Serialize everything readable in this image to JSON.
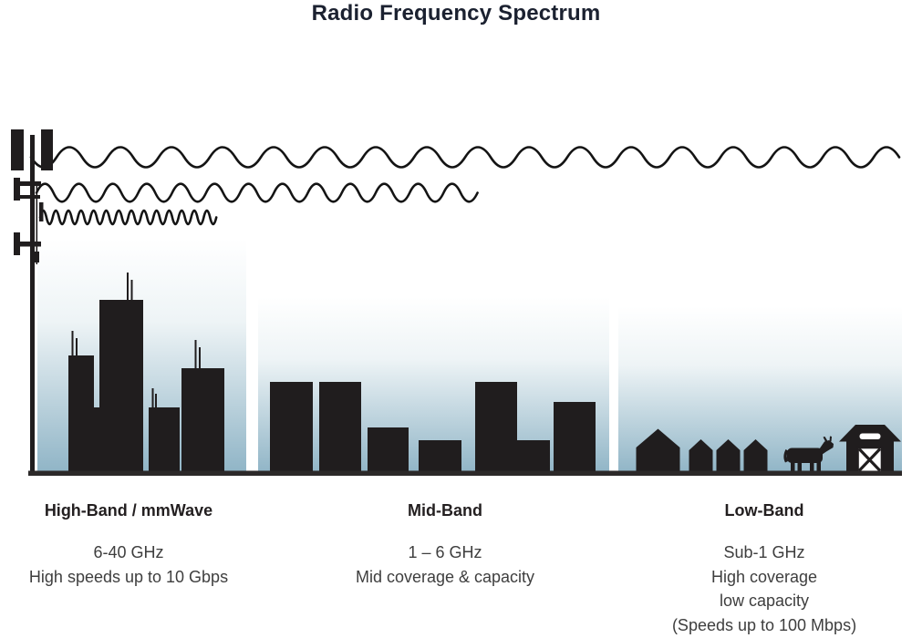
{
  "title": "Radio Frequency Spectrum",
  "bands": [
    {
      "name": "High-Band / mmWave",
      "frequency": "6-40 GHz",
      "lines": [
        "High speeds up to 10 Gbps"
      ]
    },
    {
      "name": "Mid-Band",
      "frequency": "1 – 6 GHz",
      "lines": [
        "Mid coverage & capacity"
      ]
    },
    {
      "name": "Low-Band",
      "frequency": "Sub-1 GHz",
      "lines": [
        "High coverage",
        "low capacity",
        "(Speeds up to 100 Mbps)"
      ]
    }
  ],
  "icons": {
    "tower": "cell-tower-icon",
    "high_band_scene": "city-skyline-icon",
    "mid_band_scene": "town-skyline-icon",
    "low_band_scene": "rural-farm-icon",
    "waves": [
      "long-wavelength-wave-icon",
      "medium-wavelength-wave-icon",
      "short-wavelength-wave-icon"
    ]
  },
  "colors": {
    "ink": "#201d1e",
    "wave_stroke": "#141414",
    "title_text": "#1b2130",
    "heading_text": "#231f20",
    "body_text": "#3e3e3e",
    "sky_gradient_top": "#ffffff",
    "sky_gradient_mid": "#eef4f6",
    "sky_gradient_bottom": "#8fb4c6",
    "ground": "#2c2929",
    "white": "#ffffff"
  }
}
